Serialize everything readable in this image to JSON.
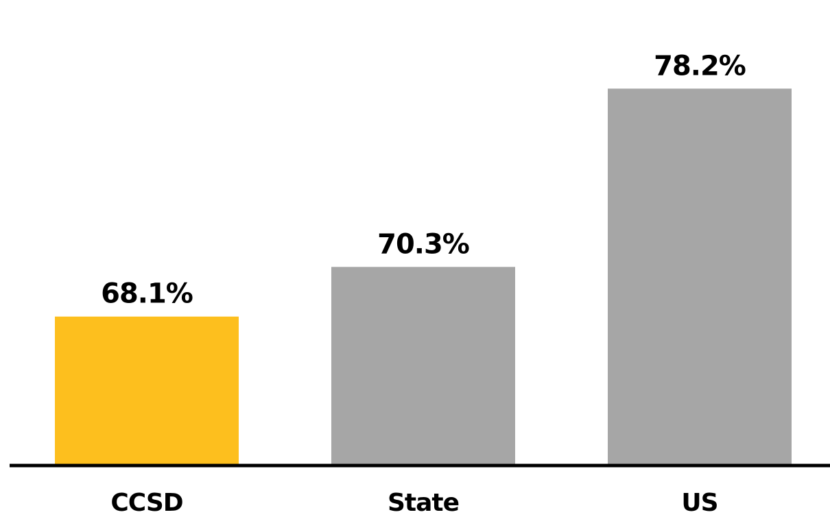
{
  "chart_data": {
    "type": "bar",
    "title": "",
    "xlabel": "",
    "ylabel": "",
    "categories": [
      "CCSD",
      "State",
      "US"
    ],
    "values": [
      68.1,
      70.3,
      78.2
    ],
    "value_labels": [
      "68.1%",
      "70.3%",
      "78.2%"
    ],
    "bar_colors": [
      "#FDBF1E",
      "#A6A6A6",
      "#A6A6A6"
    ],
    "ylim": [
      61.5,
      80
    ],
    "grid": false,
    "legend": "none"
  },
  "colors": {
    "highlight": "#FDBF1E",
    "comparison": "#A6A6A6",
    "axis": "#000000",
    "background": "#ffffff"
  }
}
